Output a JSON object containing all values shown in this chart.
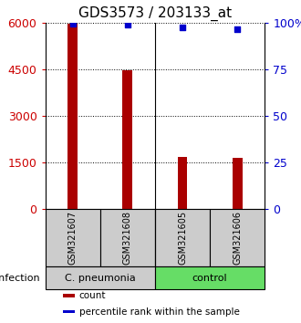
{
  "title": "GDS3573 / 203133_at",
  "samples": [
    "GSM321607",
    "GSM321608",
    "GSM321605",
    "GSM321606"
  ],
  "counts": [
    5950,
    4480,
    1680,
    1650
  ],
  "percentile_ranks": [
    99.5,
    99.0,
    97.5,
    96.5
  ],
  "left_ylim": [
    0,
    6000
  ],
  "right_ylim": [
    0,
    100
  ],
  "left_yticks": [
    0,
    1500,
    3000,
    4500,
    6000
  ],
  "right_yticks": [
    0,
    25,
    50,
    75,
    100
  ],
  "left_ycolor": "#cc0000",
  "right_ycolor": "#0000cc",
  "bar_color": "#aa0000",
  "dot_color": "#0000cc",
  "groups": [
    {
      "label": "C. pneumonia",
      "samples": [
        0,
        1
      ],
      "color": "#cccccc"
    },
    {
      "label": "control",
      "samples": [
        2,
        3
      ],
      "color": "#66dd66"
    }
  ],
  "infection_label": "infection",
  "legend_items": [
    {
      "color": "#aa0000",
      "label": "count"
    },
    {
      "color": "#0000cc",
      "label": "percentile rank within the sample"
    }
  ],
  "sample_box_color": "#cccccc",
  "bar_width": 0.18,
  "background_color": "#ffffff",
  "title_fontsize": 11,
  "tick_fontsize": 9,
  "label_fontsize": 8
}
